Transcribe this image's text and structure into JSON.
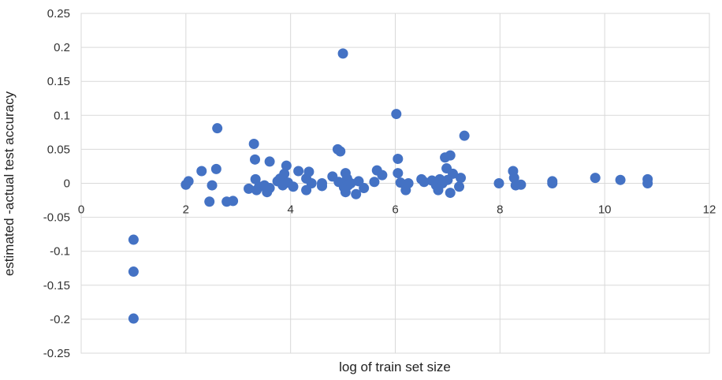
{
  "chart_data": {
    "type": "scatter",
    "title": "",
    "xlabel": "log of train set size",
    "ylabel": "estimated -actual test accuracy",
    "xlim": [
      0,
      12
    ],
    "ylim": [
      -0.25,
      0.25
    ],
    "x_ticks": [
      0,
      2,
      4,
      6,
      8,
      10,
      12
    ],
    "y_ticks": [
      0.25,
      0.2,
      0.15,
      0.1,
      0.05,
      0,
      -0.05,
      -0.1,
      -0.15,
      -0.2,
      -0.25
    ],
    "x_tick_labels": [
      "0",
      "2",
      "4",
      "6",
      "8",
      "10",
      "12"
    ],
    "y_tick_labels": [
      "0.25",
      "0.2",
      "0.15",
      "0.1",
      "0.05",
      "0",
      "-0.05",
      "-0.1",
      "-0.15",
      "-0.2",
      "-0.25"
    ],
    "grid": true,
    "legend": "none",
    "marker_color": "#4472c4",
    "series": [
      {
        "points": [
          [
            1.0,
            -0.083
          ],
          [
            1.0,
            -0.13
          ],
          [
            1.0,
            -0.199
          ],
          [
            2.0,
            -0.002
          ],
          [
            2.05,
            0.003
          ],
          [
            2.3,
            0.018
          ],
          [
            2.45,
            -0.027
          ],
          [
            2.5,
            -0.003
          ],
          [
            2.58,
            0.021
          ],
          [
            2.6,
            0.081
          ],
          [
            2.78,
            -0.027
          ],
          [
            2.9,
            -0.026
          ],
          [
            3.2,
            -0.008
          ],
          [
            3.3,
            0.058
          ],
          [
            3.32,
            0.035
          ],
          [
            3.33,
            0.006
          ],
          [
            3.35,
            -0.01
          ],
          [
            3.4,
            -0.005
          ],
          [
            3.5,
            -0.003
          ],
          [
            3.55,
            -0.013
          ],
          [
            3.6,
            -0.007
          ],
          [
            3.6,
            0.032
          ],
          [
            3.75,
            0.003
          ],
          [
            3.8,
            0.007
          ],
          [
            3.85,
            -0.003
          ],
          [
            3.88,
            0.014
          ],
          [
            3.92,
            0.026
          ],
          [
            3.95,
            0.001
          ],
          [
            4.05,
            -0.005
          ],
          [
            4.15,
            0.018
          ],
          [
            4.3,
            0.007
          ],
          [
            4.3,
            -0.01
          ],
          [
            4.35,
            0.017
          ],
          [
            4.4,
            0.0
          ],
          [
            4.6,
            -0.004
          ],
          [
            4.6,
            0.0
          ],
          [
            4.8,
            0.01
          ],
          [
            4.9,
            0.05
          ],
          [
            4.92,
            0.002
          ],
          [
            4.95,
            0.047
          ],
          [
            5.0,
            0.191
          ],
          [
            5.02,
            -0.006
          ],
          [
            5.05,
            0.015
          ],
          [
            5.05,
            -0.013
          ],
          [
            5.08,
            0.007
          ],
          [
            5.1,
            -0.003
          ],
          [
            5.15,
            0.0
          ],
          [
            5.25,
            -0.016
          ],
          [
            5.3,
            0.003
          ],
          [
            5.4,
            -0.007
          ],
          [
            5.6,
            0.002
          ],
          [
            5.65,
            0.019
          ],
          [
            5.75,
            0.012
          ],
          [
            6.02,
            0.102
          ],
          [
            6.05,
            0.036
          ],
          [
            6.05,
            0.015
          ],
          [
            6.1,
            0.001
          ],
          [
            6.2,
            -0.01
          ],
          [
            6.25,
            0.0
          ],
          [
            6.5,
            0.006
          ],
          [
            6.55,
            0.002
          ],
          [
            6.7,
            0.004
          ],
          [
            6.78,
            -0.003
          ],
          [
            6.82,
            -0.01
          ],
          [
            6.85,
            0.006
          ],
          [
            6.9,
            0.0
          ],
          [
            6.95,
            0.038
          ],
          [
            6.98,
            0.022
          ],
          [
            7.0,
            0.005
          ],
          [
            7.05,
            0.041
          ],
          [
            7.05,
            -0.014
          ],
          [
            7.1,
            0.014
          ],
          [
            7.22,
            -0.005
          ],
          [
            7.25,
            0.008
          ],
          [
            7.32,
            0.07
          ],
          [
            7.98,
            0.0
          ],
          [
            8.25,
            0.018
          ],
          [
            8.27,
            0.008
          ],
          [
            8.3,
            -0.003
          ],
          [
            8.4,
            -0.002
          ],
          [
            9.0,
            0.003
          ],
          [
            9.0,
            0.0
          ],
          [
            9.82,
            0.008
          ],
          [
            10.3,
            0.005
          ],
          [
            10.82,
            0.006
          ],
          [
            10.82,
            0.0
          ]
        ]
      }
    ]
  }
}
